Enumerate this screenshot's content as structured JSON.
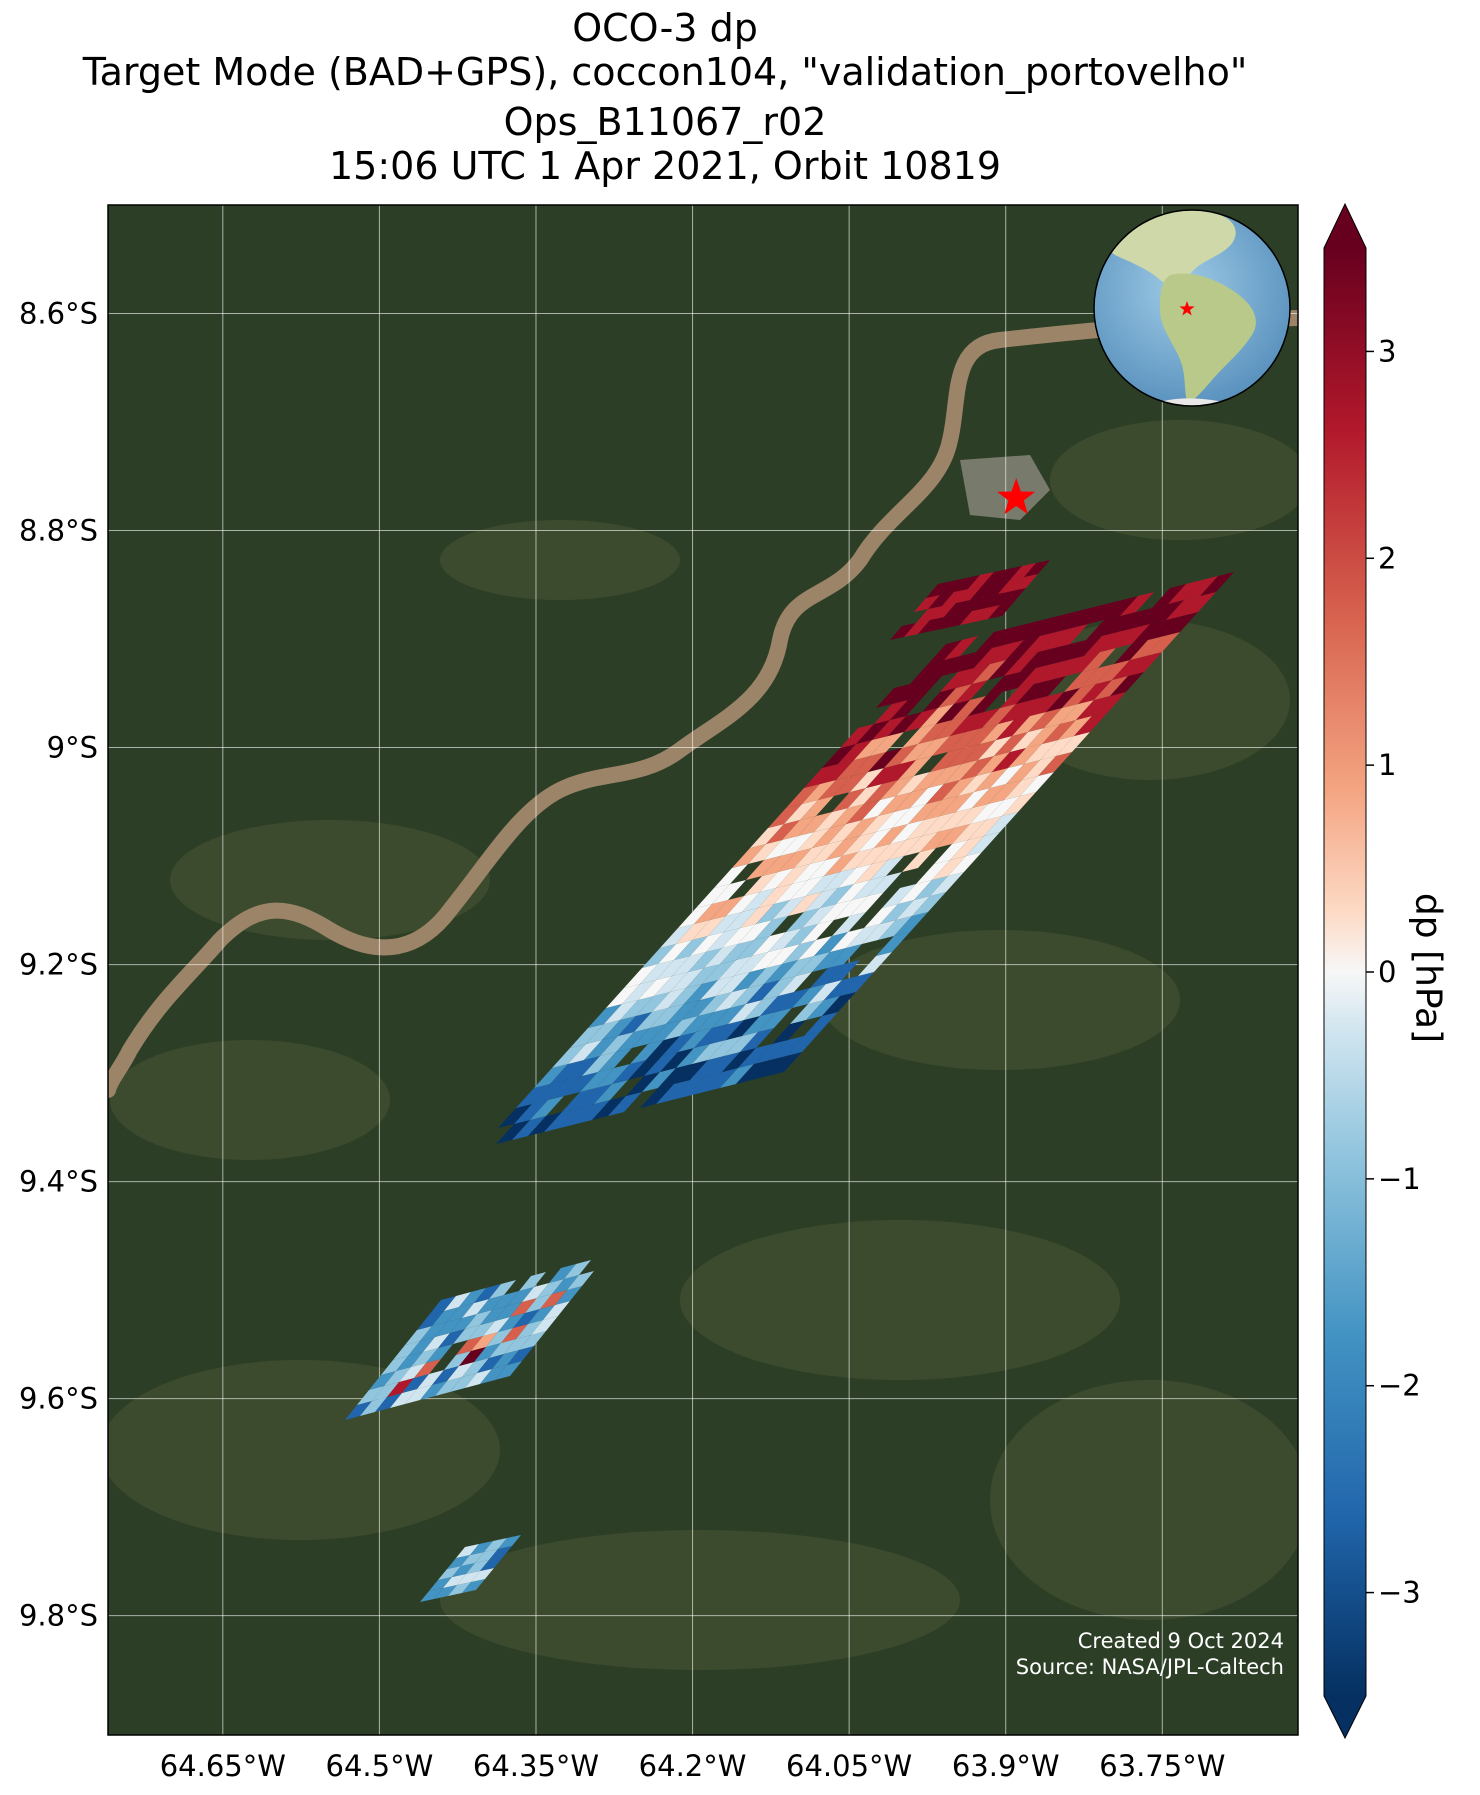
{
  "title": {
    "line1": "OCO-3 dp",
    "line2": "Target Mode (BAD+GPS), coccon104, \"validation_portovelho\"",
    "line3": "Ops_B11067_r02",
    "line4": "15:06 UTC 1 Apr 2021, Orbit 10819"
  },
  "map": {
    "lon_range": [
      -64.76,
      -63.62
    ],
    "lat_range": [
      -9.91,
      -8.5
    ],
    "lat_ticks": [
      {
        "value": -8.6,
        "label": "8.6°S"
      },
      {
        "value": -8.8,
        "label": "8.8°S"
      },
      {
        "value": -9.0,
        "label": "9°S"
      },
      {
        "value": -9.2,
        "label": "9.2°S"
      },
      {
        "value": -9.4,
        "label": "9.4°S"
      },
      {
        "value": -9.6,
        "label": "9.6°S"
      },
      {
        "value": -9.8,
        "label": "9.8°S"
      }
    ],
    "lon_ticks": [
      {
        "value": -64.65,
        "label": "64.65°W"
      },
      {
        "value": -64.5,
        "label": "64.5°W"
      },
      {
        "value": -64.35,
        "label": "64.35°W"
      },
      {
        "value": -64.2,
        "label": "64.2°W"
      },
      {
        "value": -64.05,
        "label": "64.05°W"
      },
      {
        "value": -63.9,
        "label": "63.9°W"
      },
      {
        "value": -63.75,
        "label": "63.75°W"
      }
    ],
    "target_site": {
      "lon": -63.89,
      "lat": -8.77,
      "marker_color": "#ff0000"
    },
    "background_color": "#2c3f26",
    "river_color": "#9c8468",
    "grid": true
  },
  "colorbar": {
    "label": "dp [hPa]",
    "min": -3.5,
    "max": 3.5,
    "ticks": [
      {
        "value": 3,
        "label": "3"
      },
      {
        "value": 2,
        "label": "2"
      },
      {
        "value": 1,
        "label": "1"
      },
      {
        "value": 0,
        "label": "0"
      },
      {
        "value": -1,
        "label": "−1"
      },
      {
        "value": -2,
        "label": "−2"
      },
      {
        "value": -3,
        "label": "−3"
      }
    ],
    "colormap": "RdBu_r",
    "extend": "both"
  },
  "inset_globe": {
    "region": "South America",
    "marker_color": "#ff0000"
  },
  "credits": {
    "line1": "Created 9 Oct 2024",
    "line2": "Source: NASA/JPL-Caltech"
  }
}
